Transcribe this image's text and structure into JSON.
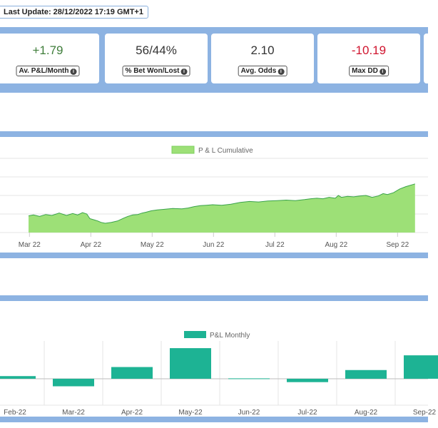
{
  "header": {
    "last_update": "Last Update: 28/12/2022 17:19 GMT+1"
  },
  "stats": [
    {
      "value": "+1.79",
      "label": "Av. P&L/Month",
      "tone": "pos"
    },
    {
      "value": "56/44%",
      "label": "% Bet Won/Lost",
      "tone": "neutral"
    },
    {
      "value": "2.10",
      "label": "Avg. Odds",
      "tone": "neutral"
    },
    {
      "value": "-10.19",
      "label": "Max DD",
      "tone": "neg"
    }
  ],
  "colors": {
    "band": "#8db3e2",
    "cumulative_fill": "#9de077",
    "cumulative_line": "#3aa34a",
    "monthly_bar": "#1db394",
    "positive": "#3f7d3a",
    "negative": "#d0142e"
  },
  "chart_data": [
    {
      "type": "area",
      "legend": "P & L Cumulative",
      "legend_position": "top",
      "grid": true,
      "x_ticks": [
        "Mar 22",
        "Apr 22",
        "May 22",
        "Jun 22",
        "Jul 22",
        "Aug 22",
        "Sep 22"
      ],
      "x": [
        0,
        0.08,
        0.18,
        0.28,
        0.38,
        0.5,
        0.62,
        0.72,
        0.8,
        0.88,
        0.95,
        1.0,
        1.08,
        1.13,
        1.18,
        1.25,
        1.35,
        1.45,
        1.55,
        1.62,
        1.7,
        1.78,
        1.85,
        1.92,
        2.0,
        2.1,
        2.2,
        2.35,
        2.5,
        2.6,
        2.7,
        2.8,
        2.9,
        3.0,
        3.15,
        3.3,
        3.45,
        3.6,
        3.75,
        3.9,
        4.05,
        4.2,
        4.35,
        4.5,
        4.6,
        4.7,
        4.8,
        4.9,
        5.0,
        5.05,
        5.1,
        5.2,
        5.3,
        5.4,
        5.5,
        5.6,
        5.7,
        5.78,
        5.85,
        5.95,
        6.05,
        6.15,
        6.3
      ],
      "y": [
        -0.4,
        -0.2,
        -0.5,
        -0.1,
        -0.3,
        0.2,
        -0.3,
        0.1,
        -0.2,
        0.3,
        0.0,
        -1.0,
        -1.3,
        -1.5,
        -1.8,
        -2.0,
        -1.8,
        -1.5,
        -0.9,
        -0.5,
        -0.2,
        -0.1,
        0.2,
        0.4,
        0.7,
        0.9,
        1.0,
        1.2,
        1.1,
        1.3,
        1.6,
        1.8,
        1.9,
        2.0,
        1.9,
        2.1,
        2.5,
        2.7,
        2.6,
        2.8,
        2.9,
        3.0,
        2.9,
        3.1,
        3.3,
        3.4,
        3.3,
        3.6,
        3.4,
        4.0,
        3.6,
        3.8,
        3.7,
        3.9,
        4.0,
        3.6,
        3.9,
        4.4,
        4.2,
        4.6,
        5.4,
        5.9,
        6.5
      ],
      "ylim": [
        -4,
        12
      ]
    },
    {
      "type": "bar",
      "legend": "P&L Monthly",
      "legend_position": "top",
      "grid": true,
      "categories": [
        "Feb-22",
        "Mar-22",
        "Apr-22",
        "May-22",
        "Jun-22",
        "Jul-22",
        "Aug-22",
        "Sep-22"
      ],
      "values": [
        0.7,
        -2.0,
        3.1,
        8.1,
        0.1,
        -0.9,
        2.3,
        6.2
      ],
      "ylim": [
        -7,
        10
      ]
    }
  ]
}
